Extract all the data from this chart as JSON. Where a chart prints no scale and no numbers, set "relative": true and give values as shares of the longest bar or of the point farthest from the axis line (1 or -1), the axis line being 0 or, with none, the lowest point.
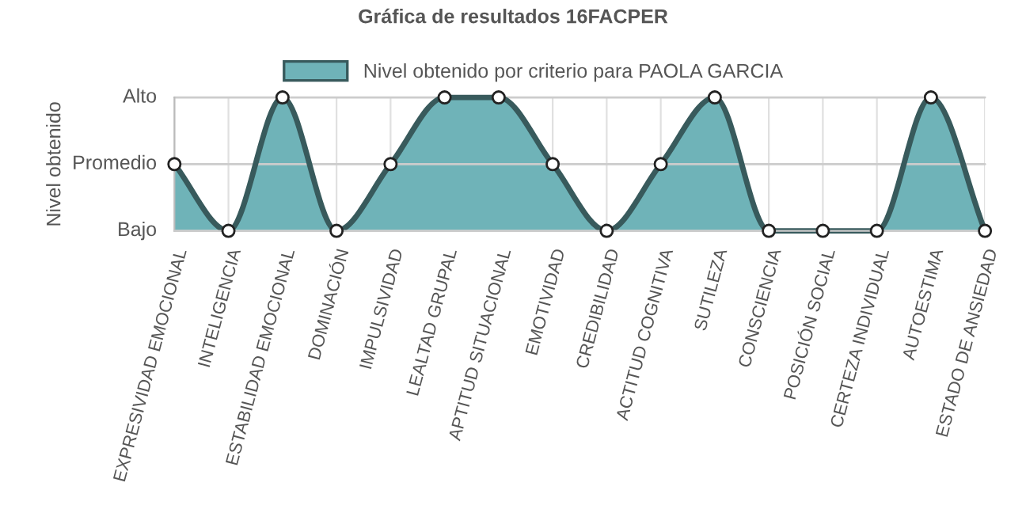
{
  "chart_data": {
    "type": "area",
    "title": "Gráfica de resultados 16FACPER",
    "ylabel": "Nivel obtenido",
    "relative": true,
    "categories": [
      "EXPRESIVIDAD EMOCIONAL",
      "INTELIGENCIA",
      "ESTABILIDAD EMOCIONAL",
      "DOMINACIÓN",
      "IMPULSIVIDAD",
      "LEALTAD GRUPAL",
      "APTITUD SITUACIONAL",
      "EMOTIVIDAD",
      "CREDIBILIDAD",
      "ACTITUD COGNITIVA",
      "SUTILEZA",
      "CONSCIENCIA",
      "POSICIÓN SOCIAL",
      "CERTEZA INDIVIDUAL",
      "AUTOESTIMA",
      "ESTADO DE ANSIEDAD"
    ],
    "series": [
      {
        "name": "Nivel obtenido por criterio para PAOLA GARCIA",
        "color": "#6fb3b8",
        "values": [
          0.5,
          0,
          1,
          0,
          0.5,
          1,
          1,
          0.5,
          0,
          0.5,
          1,
          0,
          0,
          0,
          1,
          0
        ]
      }
    ],
    "ref_lines": [
      {
        "axis": "y",
        "value": 0,
        "label": "Bajo",
        "color": "#cccccc"
      },
      {
        "axis": "y",
        "value": 0.5,
        "label": "Promedio",
        "color": "#cccccc"
      },
      {
        "axis": "y",
        "value": 1,
        "label": "Alto",
        "color": "#cccccc"
      }
    ],
    "grid": "x",
    "legend": "top",
    "marker": "circle",
    "line_style": "solid"
  }
}
